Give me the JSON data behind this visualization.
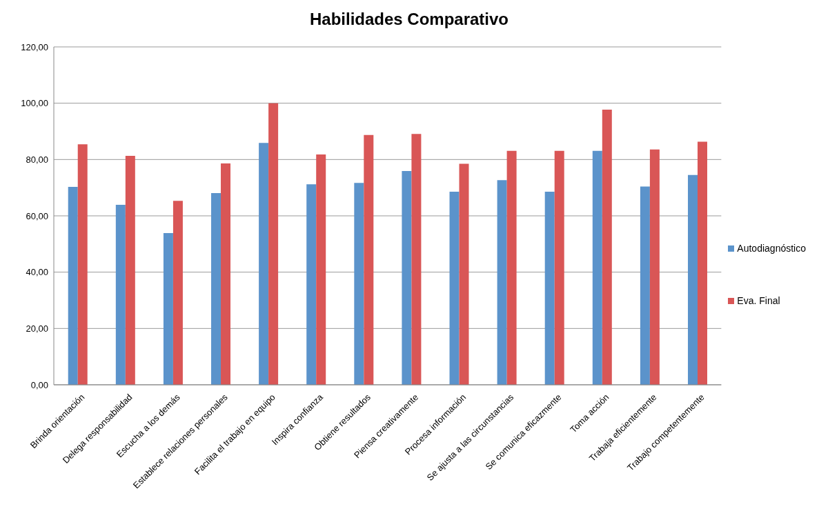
{
  "chart_data": {
    "type": "bar",
    "title": "Habilidades Comparativo",
    "categories": [
      "Brinda orientación",
      "Delega responsabilidad",
      "Escucha a los demás",
      "Establece relaciones personales",
      "Facilita el trabajo en equipo",
      "Inspira confianza",
      "Obtiene resultados",
      "Piensa creativamente",
      "Procesa información",
      "Se ajusta a las circunstancias",
      "Se comunica eficazmente",
      "Toma acción",
      "Trabaja eficientemente",
      "Trabajo competentemente"
    ],
    "series": [
      {
        "name": "Autodiagnóstico",
        "color": "#5b93cb",
        "values": [
          70.3,
          63.9,
          53.9,
          68.1,
          85.9,
          71.2,
          71.7,
          75.9,
          68.6,
          72.7,
          68.6,
          83.1,
          70.4,
          74.5
        ]
      },
      {
        "name": "Eva. Final",
        "color": "#d95656",
        "values": [
          85.4,
          81.3,
          65.3,
          78.6,
          100,
          81.8,
          88.7,
          89.1,
          78.5,
          83.1,
          83.1,
          97.7,
          83.6,
          86.3
        ]
      }
    ],
    "ylim": [
      0,
      120
    ],
    "yticks": [
      {
        "value": 0,
        "label": "0,00"
      },
      {
        "value": 20,
        "label": "20,00"
      },
      {
        "value": 40,
        "label": "40,00"
      },
      {
        "value": 60,
        "label": "60,00"
      },
      {
        "value": 80,
        "label": "80,00"
      },
      {
        "value": 100,
        "label": "100,00"
      },
      {
        "value": 120,
        "label": "120,00"
      }
    ],
    "grid": "y",
    "legend": "right"
  }
}
